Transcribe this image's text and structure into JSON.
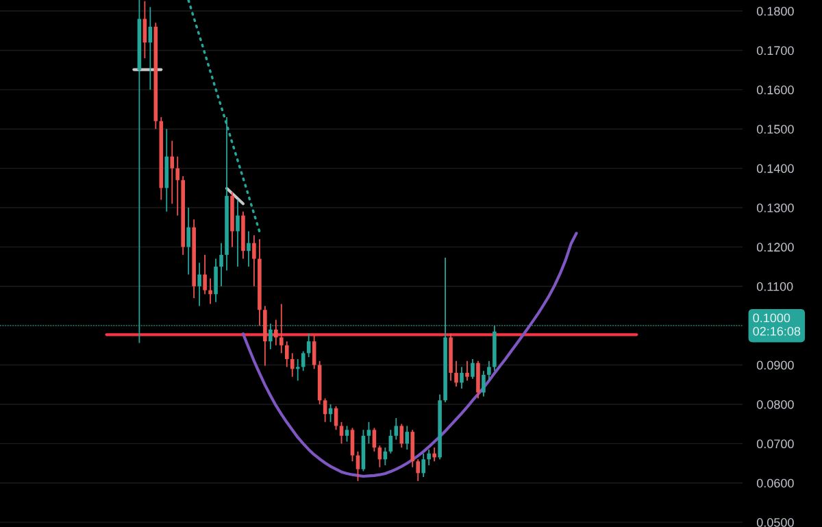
{
  "chart_data": {
    "type": "candlestick",
    "categories": [
      null,
      null,
      null,
      null,
      null,
      null,
      null,
      null,
      null,
      null,
      null,
      null,
      null,
      null,
      null,
      null,
      null,
      null,
      null,
      null,
      null,
      null,
      null,
      null,
      null,
      null,
      null,
      null,
      null,
      null,
      null,
      null,
      null,
      null,
      null,
      null,
      null,
      null,
      null,
      null,
      null,
      null,
      null,
      null,
      null,
      null,
      null,
      null,
      null,
      null,
      null,
      null,
      null,
      null,
      null,
      null,
      null,
      null,
      null,
      null,
      null,
      null,
      null,
      null,
      null,
      null,
      null,
      null,
      null,
      null,
      null,
      null,
      null,
      null,
      null,
      null,
      null,
      null,
      null,
      null,
      null,
      null,
      null,
      null,
      null,
      null,
      null,
      null,
      null,
      null,
      null,
      null,
      null,
      null,
      null,
      null,
      null,
      null,
      null,
      null,
      null,
      null,
      null,
      null,
      null,
      null,
      null,
      null,
      null,
      null,
      null,
      null,
      null,
      null,
      null,
      null,
      null,
      null,
      null,
      null,
      null,
      null,
      null,
      null,
      null,
      null,
      null,
      null,
      null,
      null,
      null,
      null,
      null,
      null,
      null,
      null
    ],
    "ohlc": [
      null,
      null,
      null,
      null,
      null,
      null,
      null,
      null,
      null,
      null,
      null,
      null,
      null,
      null,
      null,
      null,
      null,
      null,
      null,
      null,
      null,
      null,
      null,
      null,
      null,
      [
        0.165,
        0.1828,
        0.0956,
        0.178
      ],
      [
        0.178,
        0.1825,
        0.168,
        0.172
      ],
      [
        0.172,
        0.181,
        0.16,
        0.176
      ],
      [
        0.176,
        0.177,
        0.15,
        0.152
      ],
      [
        0.152,
        0.153,
        0.132,
        0.135
      ],
      [
        0.135,
        0.15,
        0.129,
        0.143
      ],
      [
        0.143,
        0.147,
        0.131,
        0.14
      ],
      [
        0.14,
        0.143,
        0.128,
        0.137
      ],
      [
        0.137,
        0.138,
        0.118,
        0.12
      ],
      [
        0.12,
        0.13,
        0.113,
        0.125
      ],
      [
        0.125,
        0.127,
        0.107,
        0.11
      ],
      [
        0.11,
        0.116,
        0.105,
        0.113
      ],
      [
        0.113,
        0.118,
        0.108,
        0.109
      ],
      [
        0.109,
        0.112,
        0.1055,
        0.108
      ],
      [
        0.108,
        0.117,
        0.106,
        0.115
      ],
      [
        0.115,
        0.121,
        0.11,
        0.118
      ],
      [
        0.118,
        0.153,
        0.114,
        0.133
      ],
      [
        0.133,
        0.134,
        0.12,
        0.124
      ],
      [
        0.124,
        0.132,
        0.115,
        0.128
      ],
      [
        0.128,
        0.129,
        0.117,
        0.119
      ],
      [
        0.119,
        0.124,
        0.115,
        0.121
      ],
      [
        0.121,
        0.123,
        0.11,
        0.117
      ],
      [
        0.117,
        0.122,
        0.1,
        0.104
      ],
      [
        0.104,
        0.105,
        0.0898,
        0.096
      ],
      [
        0.096,
        0.1005,
        0.094,
        0.099
      ],
      [
        0.099,
        0.1015,
        0.095,
        0.097
      ],
      [
        0.097,
        0.1055,
        0.093,
        0.095
      ],
      [
        0.095,
        0.096,
        0.0895,
        0.0915
      ],
      [
        0.0915,
        0.093,
        0.087,
        0.089
      ],
      [
        0.089,
        0.0915,
        0.086,
        0.0895
      ],
      [
        0.0895,
        0.0935,
        0.0885,
        0.093
      ],
      [
        0.093,
        0.098,
        0.092,
        0.096
      ],
      [
        0.096,
        0.0975,
        0.089,
        0.09
      ],
      [
        0.09,
        0.091,
        0.08,
        0.081
      ],
      [
        0.081,
        0.0815,
        0.0755,
        0.0775
      ],
      [
        0.0775,
        0.08,
        0.0755,
        0.079
      ],
      [
        0.079,
        0.0795,
        0.0735,
        0.0745
      ],
      [
        0.0745,
        0.0755,
        0.07,
        0.072
      ],
      [
        0.072,
        0.0745,
        0.0705,
        0.0735
      ],
      [
        0.0735,
        0.074,
        0.0655,
        0.067
      ],
      [
        0.067,
        0.068,
        0.0605,
        0.0635
      ],
      [
        0.0635,
        0.0735,
        0.063,
        0.072
      ],
      [
        0.072,
        0.0755,
        0.07,
        0.0735
      ],
      [
        0.0735,
        0.074,
        0.068,
        0.069
      ],
      [
        0.069,
        0.0695,
        0.064,
        0.066
      ],
      [
        0.066,
        0.069,
        0.0645,
        0.068
      ],
      [
        0.068,
        0.0735,
        0.0675,
        0.072
      ],
      [
        0.072,
        0.0765,
        0.071,
        0.0745
      ],
      [
        0.0745,
        0.075,
        0.069,
        0.07
      ],
      [
        0.07,
        0.0745,
        0.0685,
        0.073
      ],
      [
        0.073,
        0.0735,
        0.064,
        0.0655
      ],
      [
        0.0655,
        0.066,
        0.0605,
        0.0625
      ],
      [
        0.0625,
        0.0675,
        0.0615,
        0.066
      ],
      [
        0.066,
        0.0685,
        0.0645,
        0.0675
      ],
      [
        0.0675,
        0.069,
        0.0655,
        0.0665
      ],
      [
        0.0665,
        0.0825,
        0.066,
        0.081
      ],
      [
        0.081,
        0.1173,
        0.0805,
        0.097
      ],
      [
        0.097,
        0.098,
        0.086,
        0.088
      ],
      [
        0.088,
        0.091,
        0.0845,
        0.0855
      ],
      [
        0.0855,
        0.0895,
        0.084,
        0.088
      ],
      [
        0.088,
        0.091,
        0.086,
        0.087
      ],
      [
        0.087,
        0.0915,
        0.0865,
        0.0905
      ],
      [
        0.0905,
        0.091,
        0.0815,
        0.083
      ],
      [
        0.083,
        0.0885,
        0.082,
        0.0875
      ],
      [
        0.0875,
        0.091,
        0.086,
        0.0895
      ],
      [
        0.0895,
        0.1,
        0.0885,
        0.0985
      ],
      null,
      null,
      null,
      null,
      null,
      null,
      null,
      null,
      null,
      null,
      null,
      null,
      null,
      null,
      null,
      null,
      null,
      null,
      null,
      null,
      null,
      null,
      null,
      null,
      null,
      null,
      null,
      null,
      null,
      null,
      null,
      null,
      null,
      null,
      null,
      null,
      null,
      null,
      null,
      null,
      null,
      null,
      null,
      null,
      null
    ],
    "series": [
      {
        "type": "line",
        "color": "#f23645",
        "line_style": "solid",
        "values": [
          null,
          null,
          null,
          null,
          null,
          null,
          null,
          null,
          null,
          null,
          null,
          null,
          null,
          null,
          null,
          null,
          null,
          null,
          null,
          0.0977,
          0.0977,
          0.0977,
          0.0977,
          0.0977,
          0.0977,
          0.0977,
          0.0977,
          0.0977,
          0.0977,
          0.0977,
          0.0977,
          0.0977,
          0.0977,
          0.0977,
          0.0977,
          0.0977,
          0.0977,
          0.0977,
          0.0977,
          0.0977,
          0.0977,
          0.0977,
          0.0977,
          0.0977,
          0.0977,
          0.0977,
          0.0977,
          0.0977,
          0.0977,
          0.0977,
          0.0977,
          0.0977,
          0.0977,
          0.0977,
          0.0977,
          0.0977,
          0.0977,
          0.0977,
          0.0977,
          0.0977,
          0.0977,
          0.0977,
          0.0977,
          0.0977,
          0.0977,
          0.0977,
          0.0977,
          0.0977,
          0.0977,
          0.0977,
          0.0977,
          0.0977,
          0.0977,
          0.0977,
          0.0977,
          0.0977,
          0.0977,
          0.0977,
          0.0977,
          0.0977,
          0.0977,
          0.0977,
          0.0977,
          0.0977,
          0.0977,
          0.0977,
          0.0977,
          0.0977,
          0.0977,
          0.0977,
          0.0977,
          0.0977,
          0.0977,
          0.0977,
          0.0977,
          0.0977,
          0.0977,
          0.0977,
          0.0977,
          0.0977,
          0.0977,
          0.0977,
          0.0977,
          0.0977,
          0.0977,
          0.0977,
          0.0977,
          0.0977,
          0.0977,
          0.0977,
          0.0977,
          0.0977,
          0.0977,
          0.0977,
          0.0977,
          0.0977,
          0.0977,
          null,
          null,
          null,
          null,
          null,
          null,
          null,
          null,
          null,
          null,
          null,
          null,
          null,
          null,
          null,
          null,
          null,
          null,
          null
        ]
      },
      {
        "type": "line",
        "color": "#26a69a",
        "line_style": "dotted",
        "values": [
          null,
          null,
          null,
          null,
          null,
          null,
          null,
          null,
          null,
          null,
          null,
          null,
          null,
          null,
          null,
          null,
          null,
          null,
          null,
          null,
          null,
          null,
          null,
          null,
          null,
          null,
          null,
          null,
          null,
          null,
          null,
          null,
          null,
          null,
          0.1827,
          0.1782,
          0.1737,
          0.1692,
          0.1646,
          0.1601,
          0.1556,
          0.1511,
          0.1465,
          0.142,
          0.1375,
          0.133,
          0.1284,
          0.1239,
          null,
          null,
          null,
          null,
          null,
          null,
          null,
          null,
          null,
          null,
          null,
          null,
          null,
          null,
          null,
          null,
          null,
          null,
          null,
          null,
          null,
          null,
          null,
          null,
          null,
          null,
          null,
          null,
          null,
          null,
          null,
          null,
          null,
          null,
          null,
          null,
          null,
          null,
          null,
          null,
          null,
          null,
          null,
          null,
          null,
          null,
          null,
          null,
          null,
          null,
          null,
          null,
          null,
          null,
          null,
          null,
          null,
          null,
          null,
          null,
          null,
          null,
          null,
          null,
          null,
          null,
          null,
          null,
          null,
          null,
          null,
          null,
          null,
          null,
          null,
          null,
          null,
          null,
          null,
          null,
          null,
          null,
          null,
          null,
          null,
          null,
          null,
          null
        ]
      },
      {
        "type": "line",
        "color": "#c8c8c8",
        "line_style": "solid",
        "values": [
          null,
          null,
          null,
          null,
          null,
          null,
          null,
          null,
          null,
          null,
          null,
          null,
          null,
          null,
          null,
          null,
          null,
          null,
          null,
          null,
          null,
          null,
          null,
          null,
          0.1651,
          0.1651,
          0.1651,
          0.1651,
          0.1651,
          0.1651,
          null,
          null,
          null,
          null,
          null,
          null,
          null,
          null,
          null,
          null,
          null,
          null,
          null,
          null,
          null,
          null,
          null,
          null,
          null,
          null,
          null,
          null,
          null,
          null,
          null,
          null,
          null,
          null,
          null,
          null,
          null,
          null,
          null,
          null,
          null,
          null,
          null,
          null,
          null,
          null,
          null,
          null,
          null,
          null,
          null,
          null,
          null,
          null,
          null,
          null,
          null,
          null,
          null,
          null,
          null,
          null,
          null,
          null,
          null,
          null,
          null,
          null,
          null,
          null,
          null,
          null,
          null,
          null,
          null,
          null,
          null,
          null,
          null,
          null,
          null,
          null,
          null,
          null,
          null,
          null,
          null,
          null,
          null,
          null,
          null,
          null,
          null,
          null,
          null,
          null,
          null,
          null,
          null,
          null,
          null,
          null,
          null,
          null,
          null,
          null,
          null,
          null,
          null,
          null,
          null,
          null
        ]
      },
      {
        "type": "line",
        "color": "#c8c8c8",
        "line_style": "solid",
        "values": [
          null,
          null,
          null,
          null,
          null,
          null,
          null,
          null,
          null,
          null,
          null,
          null,
          null,
          null,
          null,
          null,
          null,
          null,
          null,
          null,
          null,
          null,
          null,
          null,
          null,
          null,
          null,
          null,
          null,
          null,
          null,
          null,
          null,
          null,
          null,
          null,
          null,
          null,
          null,
          null,
          null,
          0.1349,
          0.1336,
          0.1323,
          0.131,
          null,
          null,
          null,
          null,
          null,
          null,
          null,
          null,
          null,
          null,
          null,
          null,
          null,
          null,
          null,
          null,
          null,
          null,
          null,
          null,
          null,
          null,
          null,
          null,
          null,
          null,
          null,
          null,
          null,
          null,
          null,
          null,
          null,
          null,
          null,
          null,
          null,
          null,
          null,
          null,
          null,
          null,
          null,
          null,
          null,
          null,
          null,
          null,
          null,
          null,
          null,
          null,
          null,
          null,
          null,
          null,
          null,
          null,
          null,
          null,
          null,
          null,
          null,
          null,
          null,
          null,
          null,
          null,
          null,
          null,
          null,
          null,
          null,
          null,
          null,
          null,
          null,
          null,
          null,
          null,
          null,
          null,
          null,
          null,
          null,
          null,
          null,
          null,
          null,
          null,
          null
        ]
      },
      {
        "type": "line",
        "color": "#7e57c2",
        "line_style": "solid",
        "values": [
          null,
          null,
          null,
          null,
          null,
          null,
          null,
          null,
          null,
          null,
          null,
          null,
          null,
          null,
          null,
          null,
          null,
          null,
          null,
          null,
          null,
          null,
          null,
          null,
          null,
          null,
          null,
          null,
          null,
          null,
          null,
          null,
          null,
          null,
          null,
          null,
          null,
          null,
          null,
          null,
          null,
          null,
          null,
          null,
          0.0979,
          0.0944,
          0.091,
          0.0879,
          0.0849,
          0.0822,
          0.0797,
          0.0775,
          0.0754,
          0.0735,
          0.0716,
          0.07,
          0.0685,
          0.0672,
          0.0661,
          0.0651,
          0.0642,
          0.0635,
          0.0628,
          0.0624,
          0.0621,
          0.0619,
          0.0617,
          0.0618,
          0.0619,
          0.0621,
          0.0624,
          0.0629,
          0.0635,
          0.0642,
          0.065,
          0.0659,
          0.0669,
          0.068,
          0.0692,
          0.0705,
          0.0718,
          0.0732,
          0.0747,
          0.0762,
          0.0777,
          0.0793,
          0.081,
          0.0826,
          0.0842,
          0.086,
          0.0879,
          0.0897,
          0.0915,
          0.0934,
          0.0953,
          0.0972,
          0.0991,
          0.1011,
          0.1031,
          0.1053,
          0.1076,
          0.1102,
          0.1132,
          0.1166,
          0.1208,
          0.1235,
          null,
          null,
          null,
          null,
          null,
          null,
          null,
          null,
          null,
          null,
          null,
          null,
          null,
          null,
          null,
          null,
          null,
          null,
          null,
          null,
          null,
          null,
          null,
          null,
          null,
          null,
          null,
          null,
          null,
          null
        ]
      }
    ],
    "ref_lines": [
      {
        "axis": "y",
        "value": 0.1,
        "label": "0.1000\n02:16:08",
        "color": "#26a69a",
        "line_style": "dotted"
      }
    ],
    "ylim": [
      0.0488,
      0.1828
    ],
    "yticks": [
      {
        "value": 0.05,
        "label": "0.0500"
      },
      {
        "value": 0.06,
        "label": "0.0600"
      },
      {
        "value": 0.07,
        "label": "0.0700"
      },
      {
        "value": 0.08,
        "label": "0.0800"
      },
      {
        "value": 0.09,
        "label": "0.0900"
      },
      {
        "value": 0.1,
        "label": null
      },
      {
        "value": 0.11,
        "label": "0.1100"
      },
      {
        "value": 0.12,
        "label": "0.1200"
      },
      {
        "value": 0.13,
        "label": "0.1300"
      },
      {
        "value": 0.14,
        "label": "0.1400"
      },
      {
        "value": 0.15,
        "label": "0.1500"
      },
      {
        "value": 0.16,
        "label": "0.1600"
      },
      {
        "value": 0.17,
        "label": "0.1700"
      },
      {
        "value": 0.18,
        "label": "0.1800"
      }
    ],
    "grid": "y",
    "tick_labels": "y"
  }
}
